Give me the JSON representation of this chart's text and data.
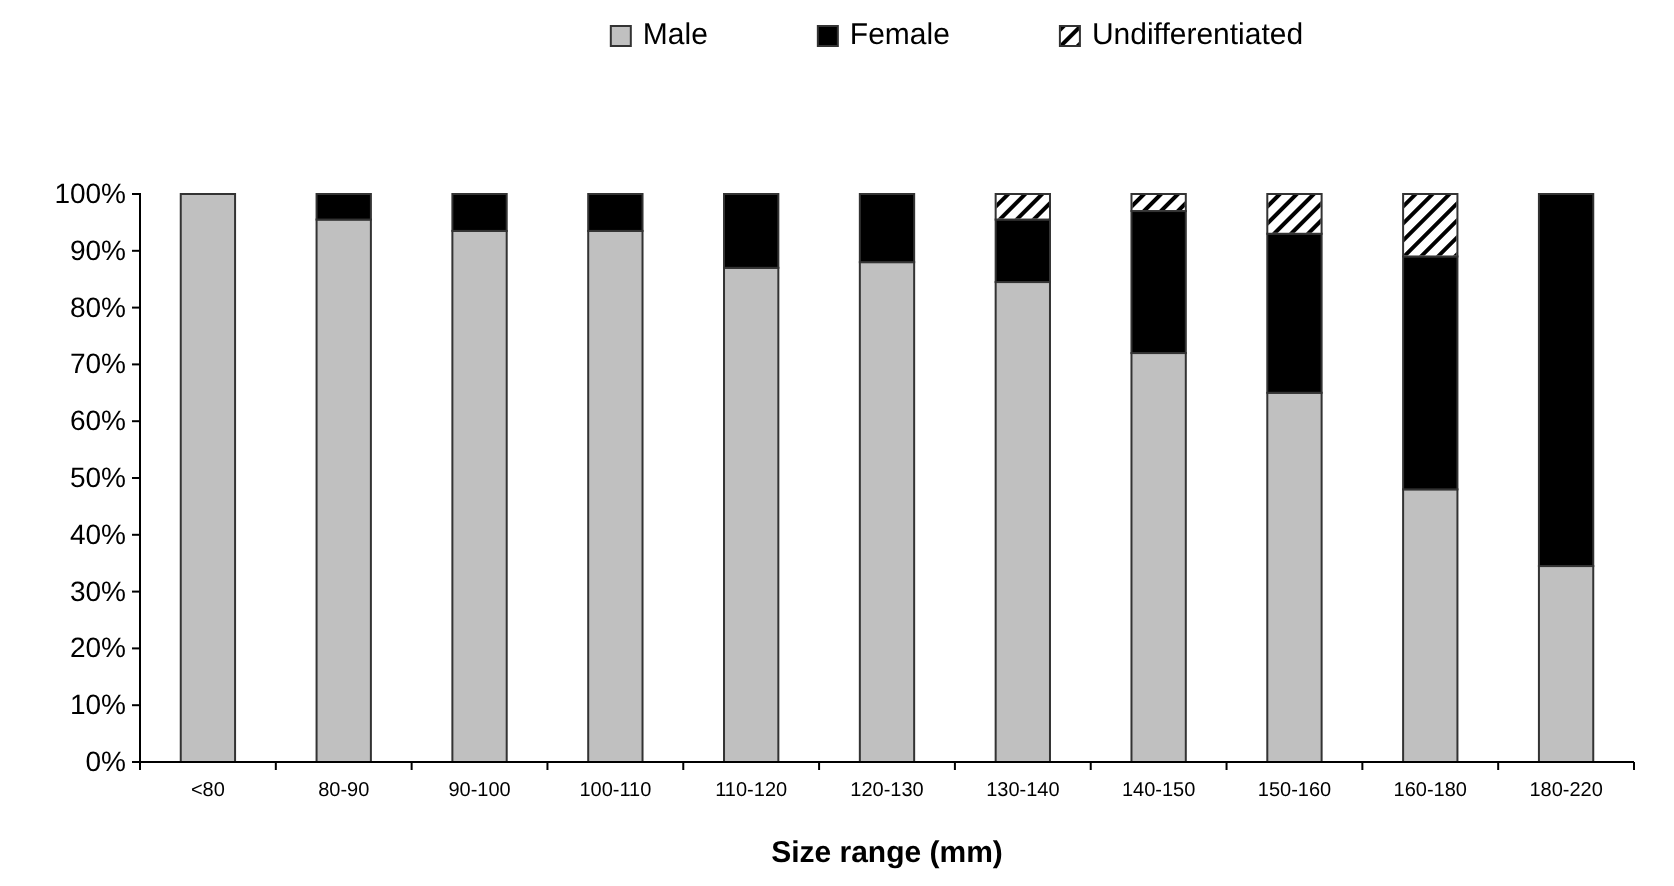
{
  "chart_data": {
    "type": "bar",
    "stacked": true,
    "xlabel": "Size range (mm)",
    "categories": [
      "<80",
      "80-90",
      "90-100",
      "100-110",
      "110-120",
      "120-130",
      "130-140",
      "140-150",
      "150-160",
      "160-180",
      "180-220"
    ],
    "series": [
      {
        "name": "Male",
        "color": "#c0c0c0",
        "values": [
          100,
          95.5,
          93.5,
          93.5,
          87,
          88,
          84.5,
          72,
          65,
          48,
          34.5
        ]
      },
      {
        "name": "Female",
        "color": "#000000",
        "values": [
          0,
          4.5,
          6.5,
          6.5,
          13,
          12,
          11,
          25,
          28,
          41,
          65.5
        ]
      },
      {
        "name": "Undifferentiated",
        "color": "#ffffff",
        "values": [
          0,
          0,
          0,
          0,
          0,
          0,
          4.5,
          3,
          7,
          11,
          0
        ]
      }
    ],
    "ylim": [
      0,
      100
    ],
    "yticks": [
      {
        "value": 0,
        "label": "0%"
      },
      {
        "value": 10,
        "label": "10%"
      },
      {
        "value": 20,
        "label": "20%"
      },
      {
        "value": 30,
        "label": "30%"
      },
      {
        "value": 40,
        "label": "40%"
      },
      {
        "value": 50,
        "label": "50%"
      },
      {
        "value": 60,
        "label": "60%"
      },
      {
        "value": 70,
        "label": "70%"
      },
      {
        "value": 80,
        "label": "80%"
      },
      {
        "value": 90,
        "label": "90%"
      },
      {
        "value": 100,
        "label": "100%"
      }
    ],
    "legend": "top",
    "grid": false
  }
}
